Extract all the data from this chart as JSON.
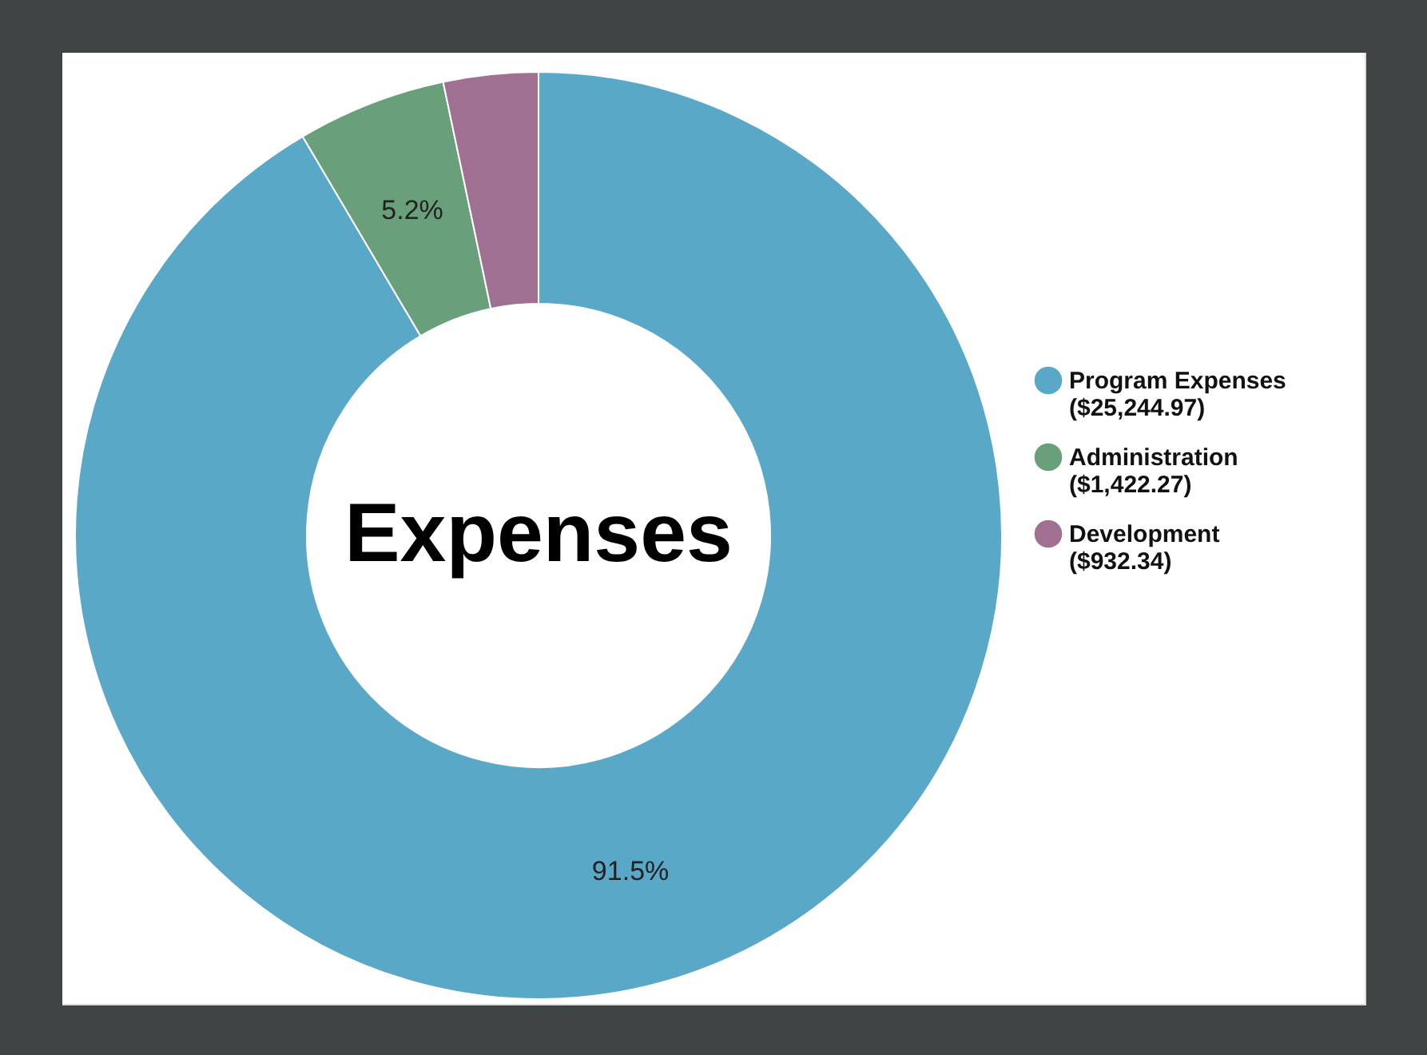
{
  "chart_data": {
    "type": "donut",
    "title": "Expenses",
    "categories": [
      "Program Expenses ($25,244.97)",
      "Administration ($1,422.27)",
      "Development ($932.34)"
    ],
    "values": [
      91.5,
      5.2,
      3.3
    ],
    "colors": [
      "#5aa8c8",
      "#6a9f7c",
      "#a07093"
    ],
    "value_labels": [
      "91.5%",
      "5.2%",
      null
    ],
    "legend": "right"
  }
}
